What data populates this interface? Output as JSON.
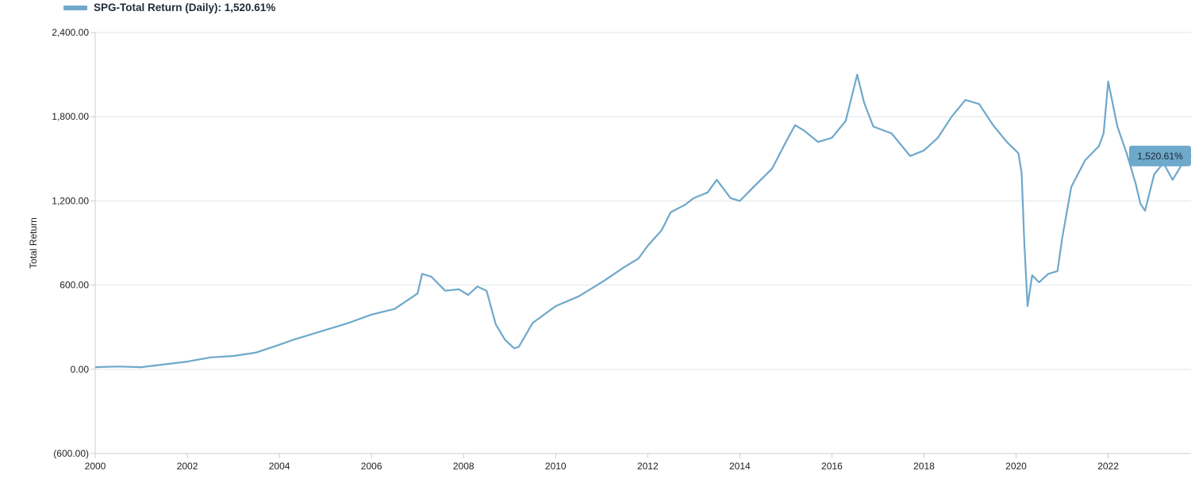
{
  "legend": {
    "label": "SPG-Total Return (Daily): 1,520.61%",
    "color": "#6ea8ca",
    "placement": "top-left"
  },
  "chart_data": {
    "type": "line",
    "title": "",
    "xlabel": "",
    "ylabel": "Total Return",
    "xlim": [
      2000.0,
      2023.8
    ],
    "ylim": [
      -600,
      2400
    ],
    "y_ticks": [
      -600,
      0,
      600,
      1200,
      1800,
      2400
    ],
    "y_tick_labels": [
      "(600.00)",
      "0.00",
      "600.00",
      "1,200.00",
      "1,800.00",
      "2,400.00"
    ],
    "x_ticks": [
      2000,
      2002,
      2004,
      2006,
      2008,
      2010,
      2012,
      2014,
      2016,
      2018,
      2020,
      2022
    ],
    "x_tick_labels": [
      "2000",
      "2002",
      "2004",
      "2006",
      "2008",
      "2010",
      "2012",
      "2014",
      "2016",
      "2018",
      "2020",
      "2022"
    ],
    "grid": "horizontal",
    "last_value_label": "1,520.61%",
    "series": [
      {
        "name": "SPG-Total Return (Daily)",
        "color": "#6ea8ca",
        "x": [
          2000.0,
          2000.5,
          2001.0,
          2001.5,
          2002.0,
          2002.5,
          2003.0,
          2003.5,
          2004.0,
          2004.3,
          2004.7,
          2005.0,
          2005.5,
          2006.0,
          2006.5,
          2007.0,
          2007.1,
          2007.3,
          2007.6,
          2007.9,
          2008.1,
          2008.3,
          2008.5,
          2008.7,
          2008.9,
          2009.1,
          2009.2,
          2009.5,
          2010.0,
          2010.5,
          2011.0,
          2011.5,
          2011.8,
          2012.0,
          2012.3,
          2012.5,
          2012.8,
          2013.0,
          2013.3,
          2013.5,
          2013.8,
          2014.0,
          2014.3,
          2014.7,
          2015.0,
          2015.2,
          2015.4,
          2015.7,
          2016.0,
          2016.3,
          2016.55,
          2016.7,
          2016.9,
          2017.3,
          2017.7,
          2018.0,
          2018.3,
          2018.6,
          2018.9,
          2019.2,
          2019.5,
          2019.8,
          2020.05,
          2020.12,
          2020.18,
          2020.25,
          2020.35,
          2020.5,
          2020.7,
          2020.9,
          2021.0,
          2021.2,
          2021.5,
          2021.8,
          2021.9,
          2022.0,
          2022.2,
          2022.4,
          2022.6,
          2022.7,
          2022.8,
          2023.0,
          2023.2,
          2023.4,
          2023.6,
          2023.8
        ],
        "y": [
          15,
          20,
          15,
          35,
          55,
          85,
          95,
          120,
          175,
          210,
          250,
          280,
          330,
          390,
          430,
          540,
          680,
          660,
          560,
          570,
          530,
          590,
          560,
          320,
          210,
          150,
          160,
          330,
          450,
          520,
          620,
          730,
          790,
          880,
          990,
          1120,
          1170,
          1220,
          1260,
          1350,
          1220,
          1200,
          1300,
          1430,
          1620,
          1740,
          1700,
          1620,
          1650,
          1770,
          2100,
          1900,
          1730,
          1680,
          1520,
          1560,
          1650,
          1800,
          1920,
          1890,
          1740,
          1620,
          1540,
          1400,
          900,
          450,
          670,
          620,
          680,
          700,
          930,
          1300,
          1490,
          1590,
          1680,
          2050,
          1730,
          1540,
          1320,
          1180,
          1130,
          1390,
          1470,
          1350,
          1460,
          1520
        ]
      }
    ]
  }
}
